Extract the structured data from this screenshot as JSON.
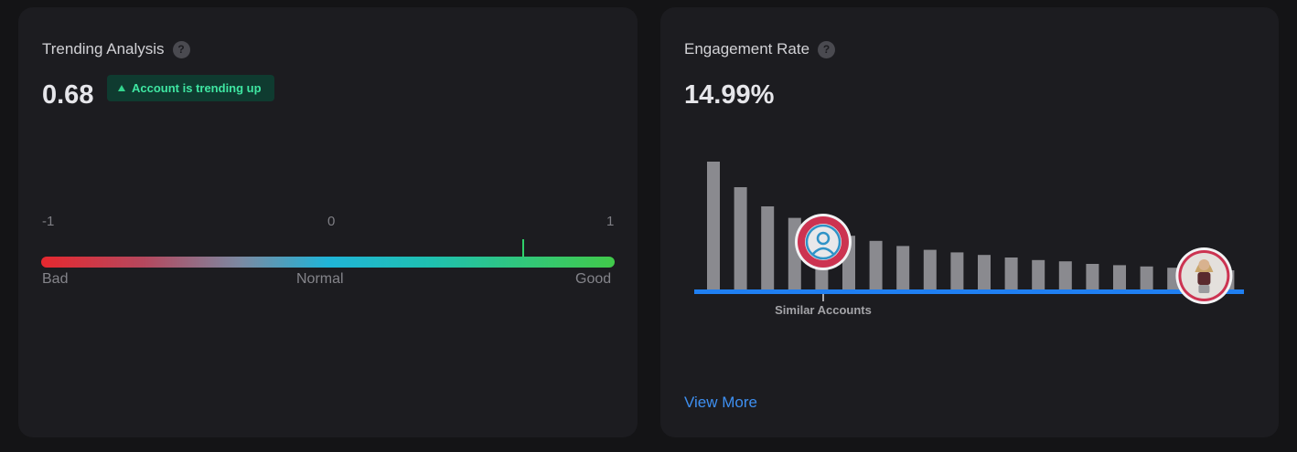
{
  "trending": {
    "title": "Trending Analysis",
    "help_glyph": "?",
    "score": "0.68",
    "score_value": 0.68,
    "badge": "Account is trending up",
    "scale": {
      "min_label": "-1",
      "mid_label": "0",
      "max_label": "1",
      "min": -1,
      "max": 1
    },
    "words": {
      "bad": "Bad",
      "normal": "Normal",
      "good": "Good"
    },
    "colors": {
      "bad": "#e6282f",
      "normal": "#20b4d8",
      "good": "#41c94a",
      "badge_text": "#3fe6a2"
    }
  },
  "engagement": {
    "title": "Engagement Rate",
    "help_glyph": "?",
    "value": "14.99%",
    "similar_label": "Similar Accounts",
    "view_more": "View More",
    "colors": {
      "bar": "#8a8a8f",
      "baseline": "#1f7ff2",
      "avatar_ring": "#cc3351",
      "avatar_icon": "#2f93c7",
      "link": "#3e8ff0"
    }
  },
  "chart_data": {
    "type": "bar",
    "values": [
      100,
      80,
      65,
      56,
      48,
      42,
      38,
      34,
      31,
      29,
      27,
      25,
      23,
      22,
      20,
      19,
      18,
      17,
      16,
      15
    ],
    "similar_accounts_index": 5,
    "account_index": 19,
    "grid": false,
    "legend": "none"
  }
}
